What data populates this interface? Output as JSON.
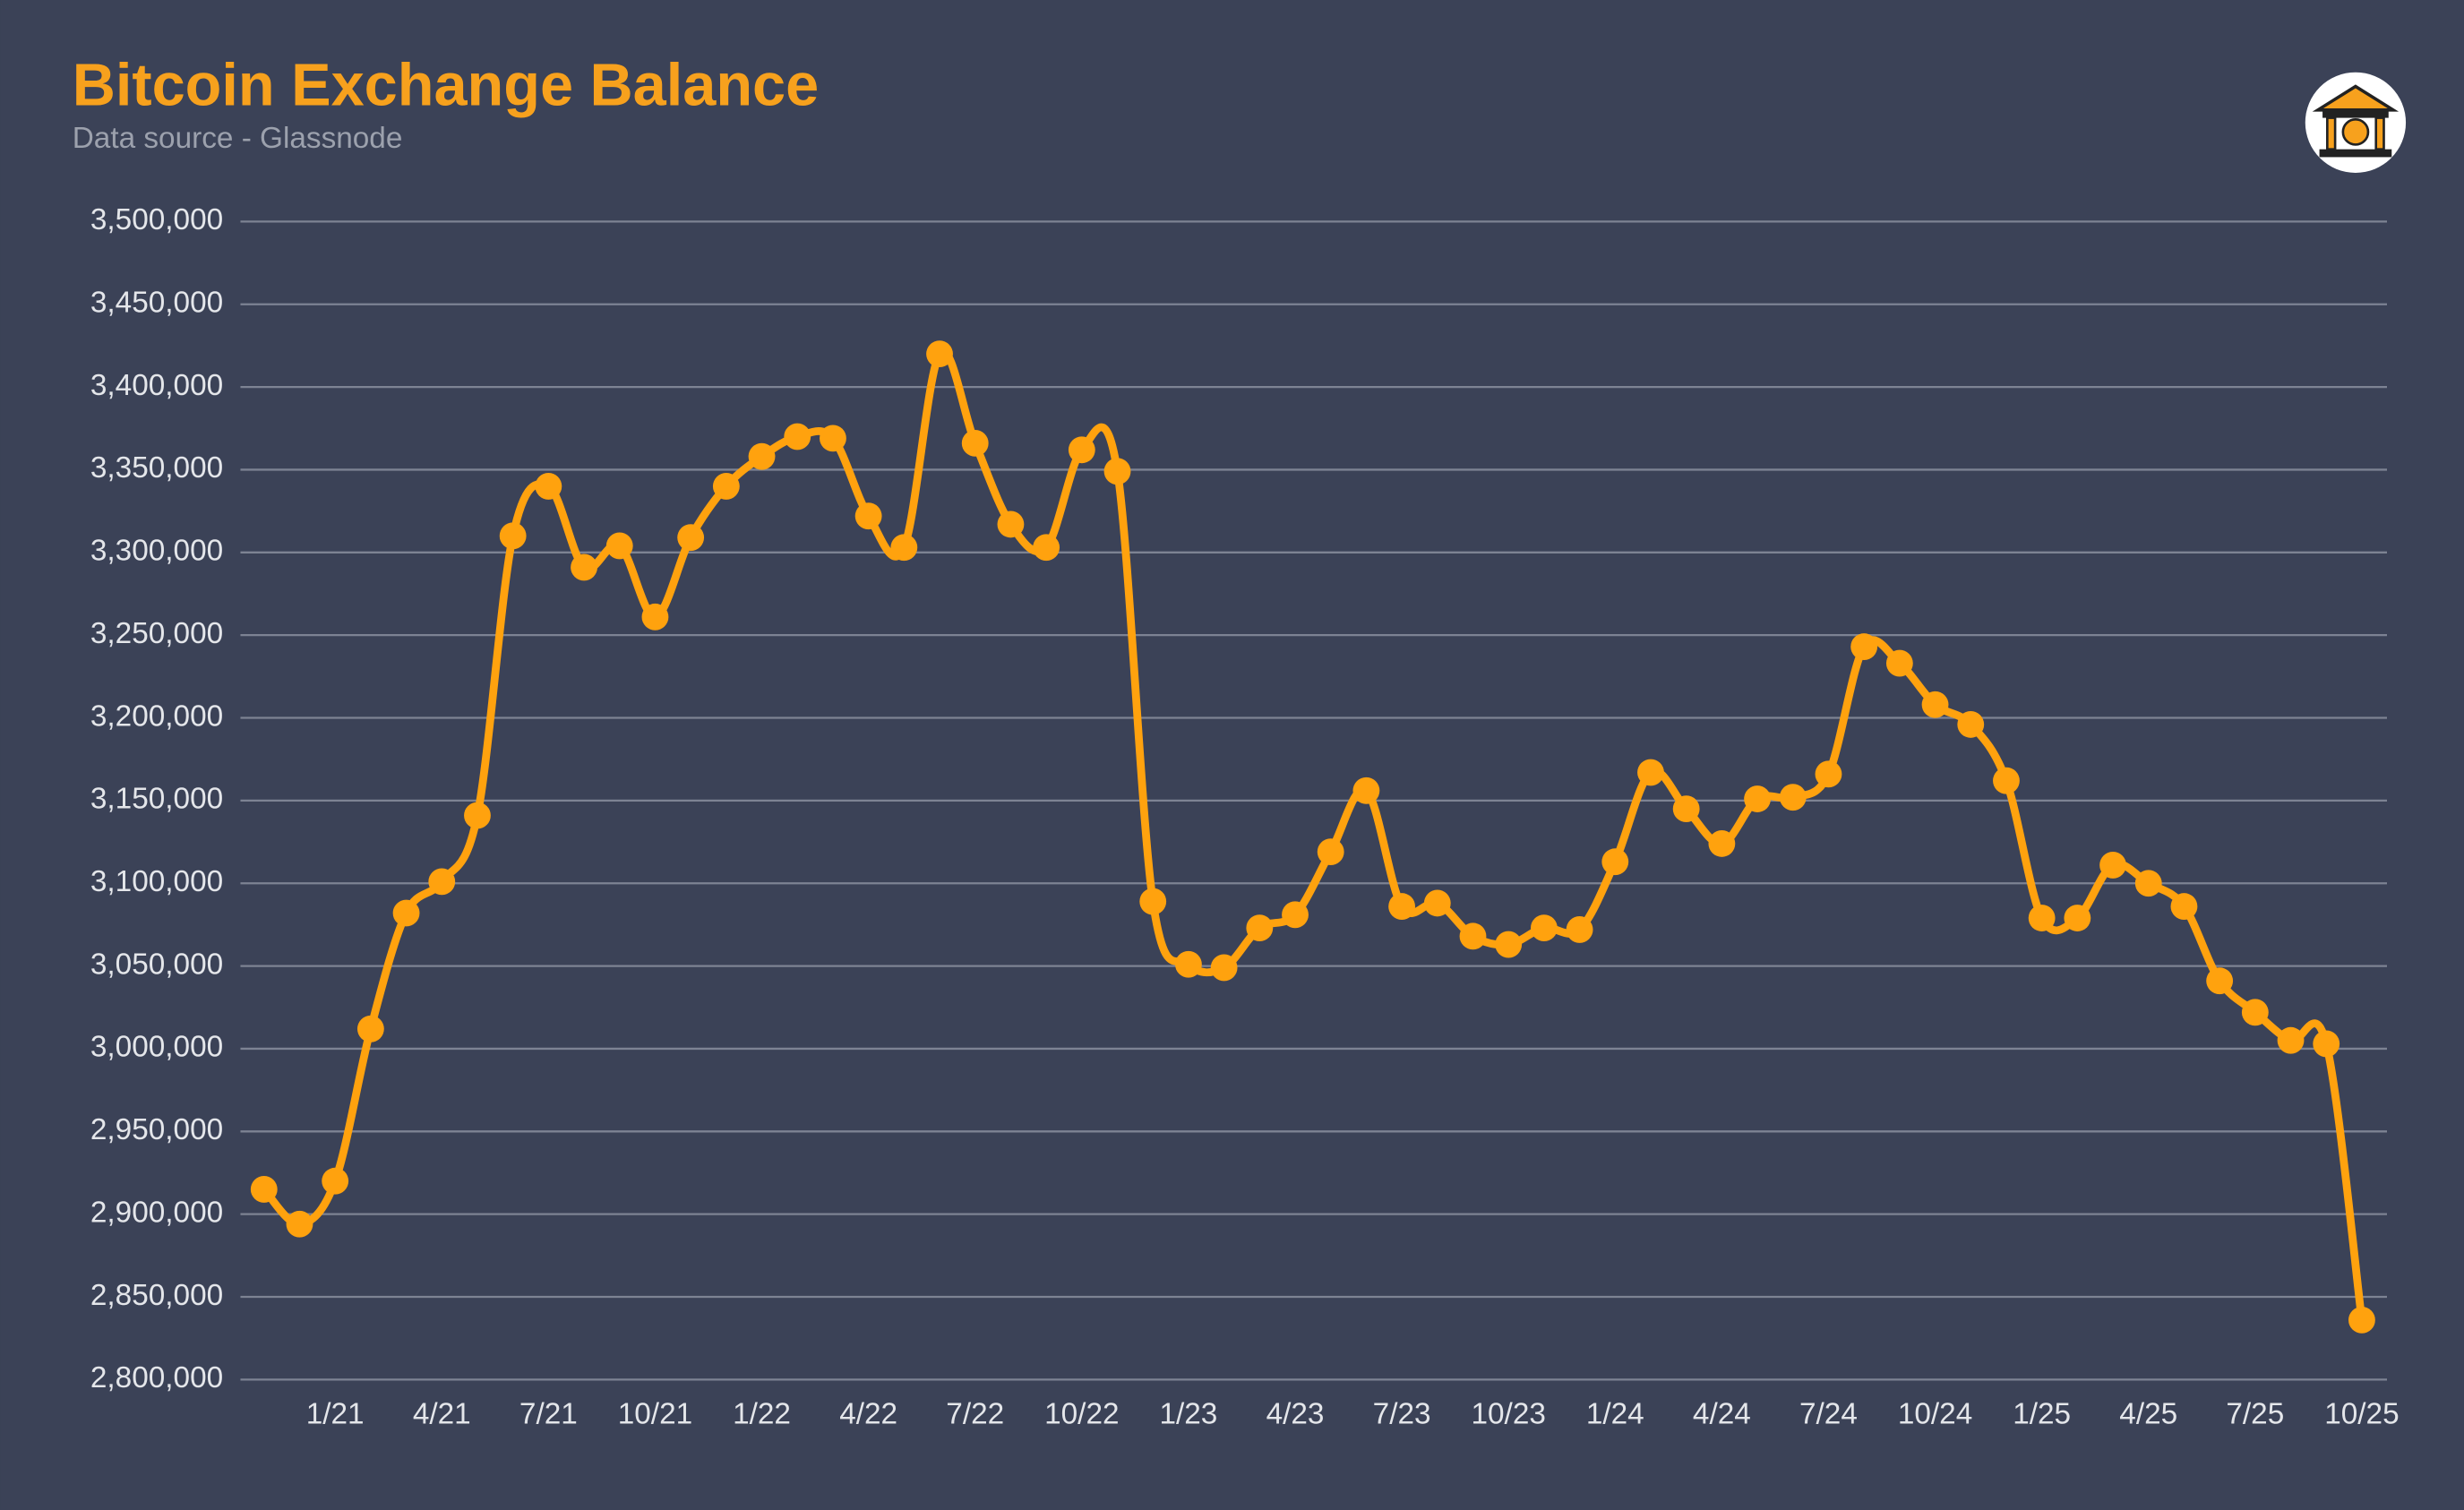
{
  "chart_data": {
    "type": "line",
    "title": "Bitcoin Exchange Balance",
    "subtitle": "Data source - Glassnode",
    "categories": [
      null,
      null,
      "1/21",
      null,
      null,
      "4/21",
      null,
      null,
      "7/21",
      null,
      null,
      "10/21",
      null,
      null,
      "1/22",
      null,
      null,
      "4/22",
      null,
      null,
      "7/22",
      null,
      null,
      "10/22",
      null,
      null,
      "1/23",
      null,
      null,
      "4/23",
      null,
      null,
      "7/23",
      null,
      null,
      "10/23",
      null,
      null,
      "1/24",
      null,
      null,
      "4/24",
      null,
      null,
      "7/24",
      null,
      null,
      "10/24",
      null,
      null,
      "1/25",
      null,
      null,
      "4/25",
      null,
      null,
      "7/25",
      null,
      null,
      "10/25"
    ],
    "series": [
      {
        "name": "Exchange Balance",
        "color": "#ffa20e",
        "values": [
          2915000,
          2894000,
          2920000,
          3012000,
          3082000,
          3101000,
          3141000,
          3310000,
          3340000,
          3291000,
          3304000,
          3261000,
          3309000,
          3340000,
          3358000,
          3370000,
          3369000,
          3322000,
          3303000,
          3420000,
          3366000,
          3317000,
          3303000,
          3362000,
          3349000,
          3089000,
          3051000,
          3049000,
          3073000,
          3081000,
          3119000,
          3156000,
          3086000,
          3088000,
          3068000,
          3063000,
          3073000,
          3072000,
          3113000,
          3167000,
          3145000,
          3124000,
          3151000,
          3152000,
          3166000,
          3243000,
          3233000,
          3208000,
          3196000,
          3162000,
          3079000,
          3079000,
          3111000,
          3100000,
          3086000,
          3041000,
          3022000,
          3005000,
          3003000,
          2836000
        ]
      }
    ],
    "ylim": [
      2800000,
      3500000
    ],
    "yticks": [
      {
        "value": 2800000,
        "label": "2,800,000"
      },
      {
        "value": 2850000,
        "label": "2,850,000"
      },
      {
        "value": 2900000,
        "label": "2,900,000"
      },
      {
        "value": 2950000,
        "label": "2,950,000"
      },
      {
        "value": 3000000,
        "label": "3,000,000"
      },
      {
        "value": 3050000,
        "label": "3,050,000"
      },
      {
        "value": 3100000,
        "label": "3,100,000"
      },
      {
        "value": 3150000,
        "label": "3,150,000"
      },
      {
        "value": 3200000,
        "label": "3,200,000"
      },
      {
        "value": 3250000,
        "label": "3,250,000"
      },
      {
        "value": 3300000,
        "label": "3,300,000"
      },
      {
        "value": 3350000,
        "label": "3,350,000"
      },
      {
        "value": 3400000,
        "label": "3,400,000"
      },
      {
        "value": 3450000,
        "label": "3,450,000"
      },
      {
        "value": 3500000,
        "label": "3,500,000"
      }
    ],
    "grid": true
  }
}
